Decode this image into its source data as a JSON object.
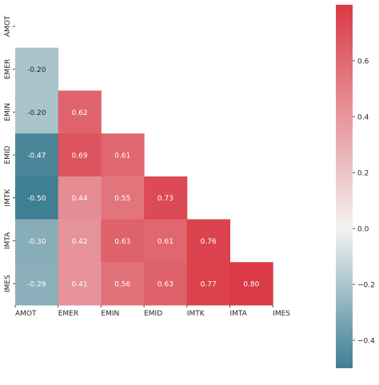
{
  "chart_data": {
    "type": "heatmap",
    "title": "",
    "xlabel": "",
    "ylabel": "",
    "labels": [
      "AMOT",
      "EMER",
      "EMIN",
      "EMID",
      "IMTK",
      "IMTA",
      "IMES"
    ],
    "mask": "upper-triangle",
    "matrix": [
      [
        null,
        null,
        null,
        null,
        null,
        null,
        null
      ],
      [
        -0.2,
        null,
        null,
        null,
        null,
        null,
        null
      ],
      [
        -0.2,
        0.62,
        null,
        null,
        null,
        null,
        null
      ],
      [
        -0.47,
        0.69,
        0.61,
        null,
        null,
        null,
        null
      ],
      [
        -0.5,
        0.44,
        0.55,
        0.73,
        null,
        null,
        null
      ],
      [
        -0.3,
        0.42,
        0.63,
        0.61,
        0.76,
        null,
        null
      ],
      [
        -0.29,
        0.41,
        0.56,
        0.63,
        0.77,
        0.8,
        null
      ]
    ],
    "value_labels": [
      [
        null,
        null,
        null,
        null,
        null,
        null,
        null
      ],
      [
        "-0.20",
        null,
        null,
        null,
        null,
        null,
        null
      ],
      [
        "-0.20",
        "0.62",
        null,
        null,
        null,
        null,
        null
      ],
      [
        "-0.47",
        "0.69",
        "0.61",
        null,
        null,
        null,
        null
      ],
      [
        "-0.50",
        "0.44",
        "0.55",
        "0.73",
        null,
        null,
        null
      ],
      [
        "-0.30",
        "0.42",
        "0.63",
        "0.61",
        "0.76",
        null,
        null
      ],
      [
        "-0.29",
        "0.41",
        "0.56",
        "0.63",
        "0.77",
        "0.80",
        null
      ]
    ],
    "colorbar": {
      "vmin": -0.5,
      "vmax": 0.8,
      "ticks": [
        -0.4,
        -0.2,
        0.0,
        0.2,
        0.4,
        0.6
      ],
      "tick_labels": [
        "−0.4",
        "−0.2",
        "0.0",
        "0.2",
        "0.4",
        "0.6"
      ],
      "placement": "right"
    },
    "colormap": {
      "negative": "#3f7f93",
      "center": "#f2f2f2",
      "positive": "#da3b46"
    },
    "grid": false
  }
}
